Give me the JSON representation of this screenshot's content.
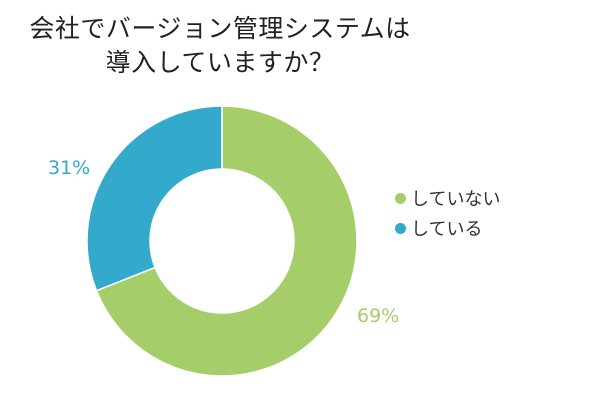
{
  "chart_data": {
    "type": "pie",
    "donut": true,
    "title": "会社でバージョン管理システムは導入していますか？",
    "title_lines": [
      "会社でバージョン管理システムは",
      "導入していますか？"
    ],
    "categories": [
      "していない",
      "している"
    ],
    "values": [
      69,
      31
    ],
    "data_labels": [
      "69%",
      "31%"
    ],
    "colors": [
      "#A5CE6B",
      "#33AACB"
    ],
    "legend": {
      "placement": "right",
      "entries": [
        "していない",
        "している"
      ]
    }
  }
}
